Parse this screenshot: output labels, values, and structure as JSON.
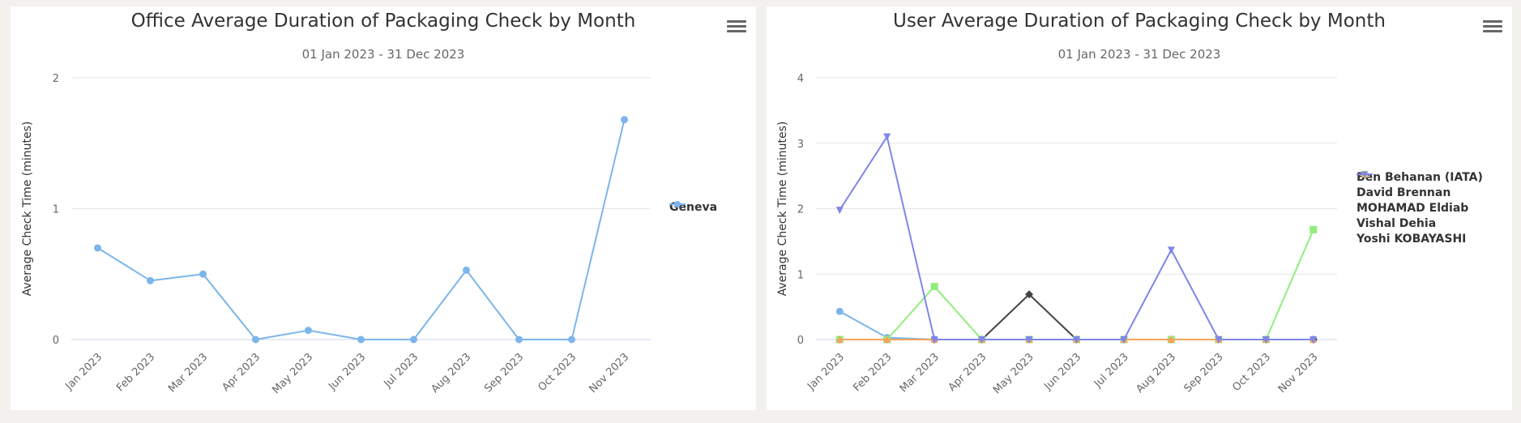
{
  "charts": [
    {
      "title": "Office Average Duration of Packaging Check by Month",
      "subtitle": "01 Jan 2023 - 31 Dec 2023",
      "menu_icon": "hamburger-menu-icon"
    },
    {
      "title": "User Average Duration of Packaging Check by Month",
      "subtitle": "01 Jan 2023 - 31 Dec 2023",
      "menu_icon": "hamburger-menu-icon"
    }
  ],
  "chart_data": [
    {
      "type": "line",
      "title": "Office Average Duration of Packaging Check by Month",
      "subtitle": "01 Jan 2023 - 31 Dec 2023",
      "xlabel": "",
      "ylabel": "Average Check  Time (minutes)",
      "categories": [
        "Jan 2023",
        "Feb 2023",
        "Mar 2023",
        "Apr 2023",
        "May 2023",
        "Jun 2023",
        "Jul 2023",
        "Aug 2023",
        "Sep 2023",
        "Oct 2023",
        "Nov 2023"
      ],
      "yticks": [
        0,
        1,
        2
      ],
      "ylim": [
        0,
        2
      ],
      "grid": true,
      "legend_position": "right",
      "series": [
        {
          "name": "Geneva",
          "color": "#7cb5ec",
          "marker": "circle",
          "values": [
            0.7,
            0.45,
            0.5,
            0,
            0.07,
            0,
            0,
            0.53,
            0,
            0,
            1.68
          ]
        }
      ]
    },
    {
      "type": "line",
      "title": "User Average Duration of Packaging Check by Month",
      "subtitle": "01 Jan 2023 - 31 Dec 2023",
      "xlabel": "",
      "ylabel": "Average Check  Time (minutes)",
      "categories": [
        "Jan 2023",
        "Feb 2023",
        "Mar 2023",
        "Apr 2023",
        "May 2023",
        "Jun 2023",
        "Jul 2023",
        "Aug 2023",
        "Sep 2023",
        "Oct 2023",
        "Nov 2023"
      ],
      "yticks": [
        0,
        1,
        2,
        3,
        4
      ],
      "ylim": [
        0,
        4
      ],
      "grid": true,
      "legend_position": "right",
      "series": [
        {
          "name": "Ben Behanan (IATA)",
          "color": "#7cb5ec",
          "marker": "circle",
          "values": [
            0.43,
            0.03,
            0,
            0,
            0,
            0,
            0,
            0,
            0,
            0,
            0
          ]
        },
        {
          "name": "David Brennan",
          "color": "#434348",
          "marker": "diamond",
          "values": [
            0,
            0,
            0,
            0,
            0.69,
            0,
            0,
            0,
            0,
            0,
            0
          ]
        },
        {
          "name": "MOHAMAD Eldiab",
          "color": "#90ed7d",
          "marker": "square",
          "values": [
            0,
            0,
            0.81,
            0,
            0,
            0,
            0,
            0,
            0,
            0,
            1.68
          ]
        },
        {
          "name": "Vishal Dehia",
          "color": "#f7a35c",
          "marker": "triangle",
          "values": [
            0,
            0,
            0,
            0,
            0,
            0,
            0,
            0,
            0,
            0,
            0
          ]
        },
        {
          "name": "Yoshi KOBAYASHI",
          "color": "#8085e9",
          "marker": "triangle-down",
          "values": [
            1.98,
            3.1,
            0,
            0,
            0,
            0,
            0,
            1.37,
            0,
            0,
            0
          ]
        }
      ]
    }
  ]
}
